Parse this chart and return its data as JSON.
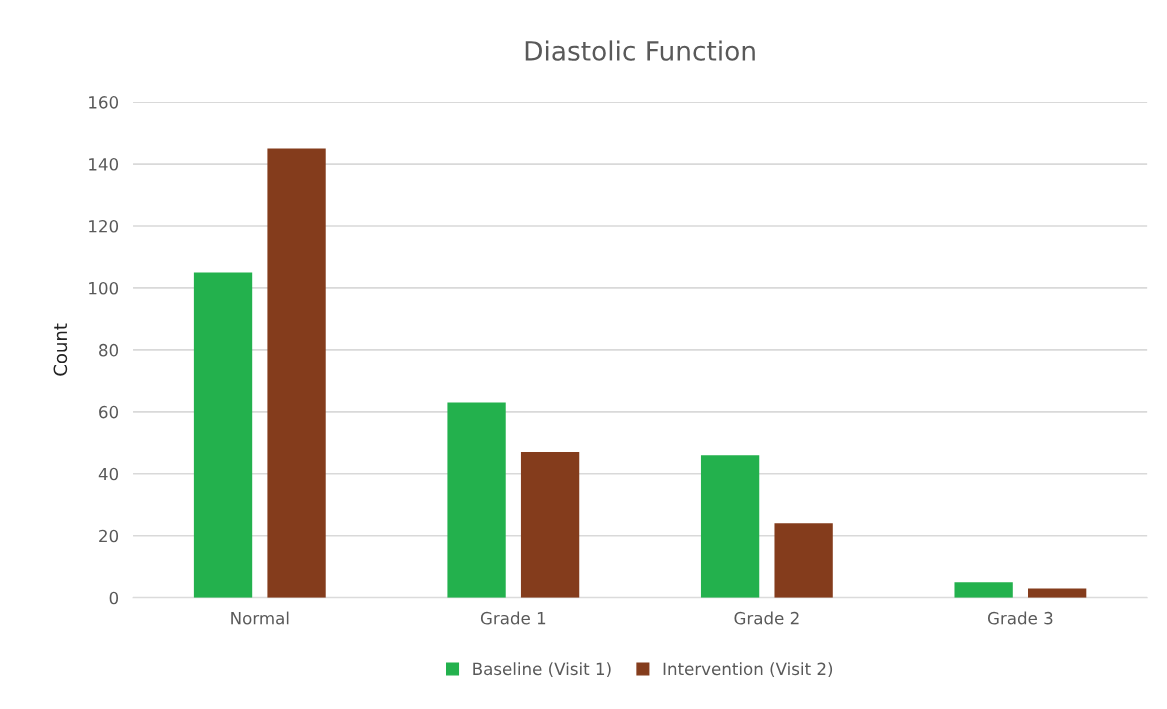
{
  "chart_data": {
    "type": "bar",
    "title": "Diastolic Function",
    "ylabel": "Count",
    "categories": [
      "Normal",
      "Grade 1",
      "Grade 2",
      "Grade 3"
    ],
    "series": [
      {
        "name": "Baseline (Visit 1)",
        "color": "#23b14d",
        "values": [
          105,
          63,
          46,
          5
        ]
      },
      {
        "name": "Intervention (Visit 2)",
        "color": "#843c1c",
        "values": [
          145,
          47,
          24,
          3
        ]
      }
    ],
    "ylim": [
      0,
      160
    ],
    "yticks": [
      0,
      20,
      40,
      60,
      80,
      100,
      120,
      140,
      160
    ],
    "grid": "y",
    "legend": "bottom"
  }
}
